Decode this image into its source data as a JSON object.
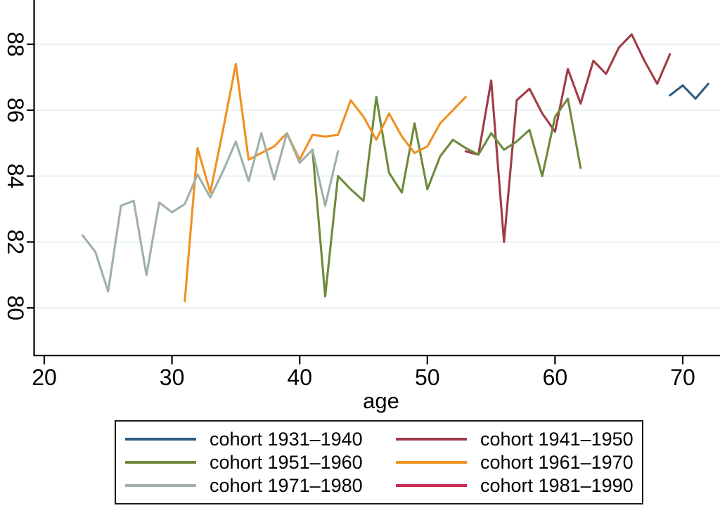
{
  "chart_data": {
    "type": "line",
    "title": "",
    "xlabel": "age",
    "ylabel": "",
    "x_ticks": [
      20,
      30,
      40,
      50,
      60,
      70
    ],
    "y_ticks": [
      80,
      82,
      84,
      86,
      88
    ],
    "xlim": [
      19.2,
      72.9
    ],
    "ylim": [
      78.6,
      89.3
    ],
    "grid": "horizontal only, light blue-gray lines at each y tick",
    "grid_color": "#e2edf0",
    "axis_color": "#000000",
    "legend_position": "boxed, centered below plot, 2 columns x 3 rows",
    "series": [
      {
        "name": "cohort 1931–1940",
        "color": "#2e5c7e",
        "points": [
          [
            69,
            86.45
          ],
          [
            70,
            86.75
          ],
          [
            71,
            86.35
          ],
          [
            72,
            86.8
          ]
        ]
      },
      {
        "name": "cohort 1941–1950",
        "color": "#9f3c47",
        "points": [
          [
            53,
            84.75
          ],
          [
            54,
            84.65
          ],
          [
            55,
            86.9
          ],
          [
            56,
            82.0
          ],
          [
            57,
            86.3
          ],
          [
            58,
            86.65
          ],
          [
            59,
            85.9
          ],
          [
            60,
            85.35
          ],
          [
            61,
            87.25
          ],
          [
            62,
            86.2
          ],
          [
            63,
            87.5
          ],
          [
            64,
            87.1
          ],
          [
            65,
            87.9
          ],
          [
            66,
            88.3
          ],
          [
            67,
            87.5
          ],
          [
            68,
            86.8
          ],
          [
            69,
            87.7
          ]
        ]
      },
      {
        "name": "cohort 1951–1960",
        "color": "#6d8a3b",
        "points": [
          [
            41,
            84.8
          ],
          [
            42,
            80.35
          ],
          [
            43,
            84.0
          ],
          [
            44,
            83.6
          ],
          [
            45,
            83.25
          ],
          [
            46,
            86.4
          ],
          [
            47,
            84.1
          ],
          [
            48,
            83.5
          ],
          [
            49,
            85.6
          ],
          [
            50,
            83.6
          ],
          [
            51,
            84.6
          ],
          [
            52,
            85.1
          ],
          [
            53,
            84.85
          ],
          [
            54,
            84.65
          ],
          [
            55,
            85.3
          ],
          [
            56,
            84.8
          ],
          [
            57,
            85.05
          ],
          [
            58,
            85.4
          ],
          [
            59,
            84.0
          ],
          [
            60,
            85.8
          ],
          [
            61,
            86.35
          ],
          [
            62,
            84.25
          ]
        ]
      },
      {
        "name": "cohort 1961–1970",
        "color": "#ef9121",
        "points": [
          [
            31,
            80.2
          ],
          [
            32,
            84.85
          ],
          [
            33,
            83.5
          ],
          [
            34,
            85.4
          ],
          [
            35,
            87.4
          ],
          [
            36,
            84.5
          ],
          [
            37,
            84.7
          ],
          [
            38,
            84.9
          ],
          [
            39,
            85.3
          ],
          [
            40,
            84.5
          ],
          [
            41,
            85.25
          ],
          [
            42,
            85.2
          ],
          [
            43,
            85.25
          ],
          [
            44,
            86.3
          ],
          [
            45,
            85.8
          ],
          [
            46,
            85.1
          ],
          [
            47,
            85.9
          ],
          [
            48,
            85.2
          ],
          [
            49,
            84.7
          ],
          [
            50,
            84.9
          ],
          [
            51,
            85.6
          ],
          [
            52,
            86.0
          ],
          [
            53,
            86.4
          ]
        ]
      },
      {
        "name": "cohort 1971–1980",
        "color": "#9eb0aa",
        "points": [
          [
            23,
            82.2
          ],
          [
            24,
            81.7
          ],
          [
            25,
            80.5
          ],
          [
            26,
            83.1
          ],
          [
            27,
            83.25
          ],
          [
            28,
            81.0
          ],
          [
            29,
            83.2
          ],
          [
            30,
            82.9
          ],
          [
            31,
            83.15
          ],
          [
            32,
            84.05
          ],
          [
            33,
            83.35
          ],
          [
            34,
            84.15
          ],
          [
            35,
            85.05
          ],
          [
            36,
            83.85
          ],
          [
            37,
            85.3
          ],
          [
            38,
            83.9
          ],
          [
            39,
            85.3
          ],
          [
            40,
            84.4
          ],
          [
            41,
            84.8
          ],
          [
            42,
            83.1
          ],
          [
            43,
            84.75
          ]
        ]
      },
      {
        "name": "cohort 1981–1990",
        "color": "#c42d52",
        "points": [],
        "note": "legend entry only; no line visible in plotted area"
      }
    ]
  }
}
